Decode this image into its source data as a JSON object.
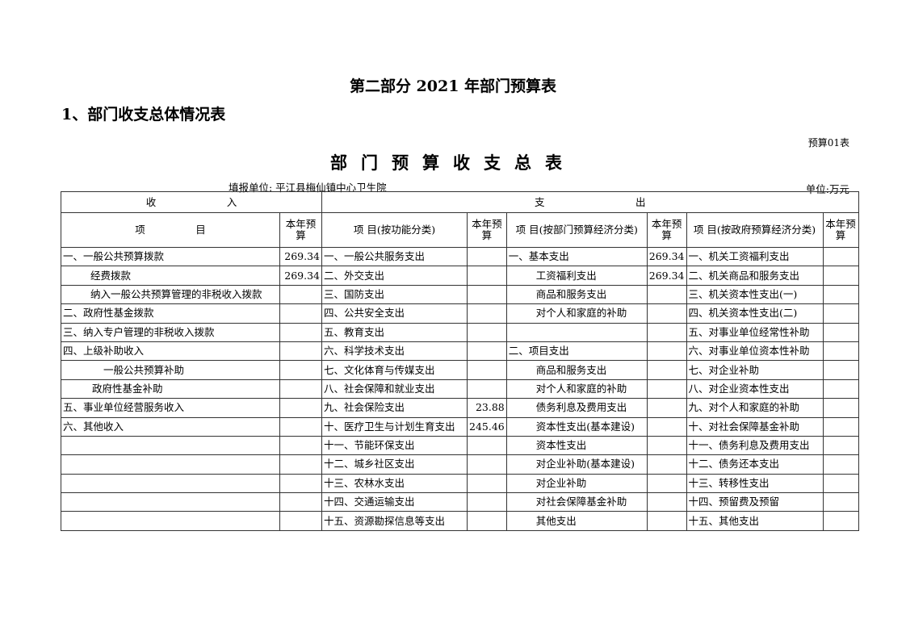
{
  "part_title": "第二部分 2021 年部门预算表",
  "section_title": "1、部门收支总体情况表",
  "table_code": "预算01表",
  "table_title": "部门预算收支总表",
  "filler": "填报单位: 平江县梅仙镇中心卫生院",
  "unit": "单位:万元",
  "headers": {
    "income": "收　　　　　　　入",
    "expense": "支　　　　　　　　　出",
    "col_item": "项　　　　　目",
    "col_budget": "本年预算",
    "col_func": "项 目(按功能分类)",
    "col_dept_econ": "项 目(按部门预算经济分类)",
    "col_gov_econ": "项 目(按政府预算经济分类)"
  },
  "rows": [
    {
      "in_item": "一、一般公共预算拨款",
      "in_val": "269.34",
      "func": "一、一般公共服务支出",
      "func_val": "",
      "dept": "一、基本支出",
      "dept_val": "269.34",
      "gov": "一、机关工资福利支出",
      "gov_val": ""
    },
    {
      "in_item": "经费拨款",
      "in_val": "269.34",
      "func": "二、外交支出",
      "func_val": "",
      "dept": "工资福利支出",
      "dept_val": "269.34",
      "gov": "二、机关商品和服务支出",
      "gov_val": ""
    },
    {
      "in_item": "纳入一般公共预算管理的非税收入拨款",
      "in_val": "",
      "func": "三、国防支出",
      "func_val": "",
      "dept": "商品和服务支出",
      "dept_val": "",
      "gov": "三、机关资本性支出(一)",
      "gov_val": ""
    },
    {
      "in_item": "二、政府性基金拨款",
      "in_val": "",
      "func": "四、公共安全支出",
      "func_val": "",
      "dept": "对个人和家庭的补助",
      "dept_val": "",
      "gov": "四、机关资本性支出(二)",
      "gov_val": ""
    },
    {
      "in_item": "三、纳入专户管理的非税收入拨款",
      "in_val": "",
      "func": "五、教育支出",
      "func_val": "",
      "dept": "",
      "dept_val": "",
      "gov": "五、对事业单位经常性补助",
      "gov_val": ""
    },
    {
      "in_item": "四、上级补助收入",
      "in_val": "",
      "func": "六、科学技术支出",
      "func_val": "",
      "dept": "二、项目支出",
      "dept_val": "",
      "gov": "六、对事业单位资本性补助",
      "gov_val": ""
    },
    {
      "in_item": "一般公共预算补助",
      "in_val": "",
      "func": "七、文化体育与传媒支出",
      "func_val": "",
      "dept": "商品和服务支出",
      "dept_val": "",
      "gov": "七、对企业补助",
      "gov_val": ""
    },
    {
      "in_item": "政府性基金补助",
      "in_val": "",
      "func": "八、社会保障和就业支出",
      "func_val": "",
      "dept": "对个人和家庭的补助",
      "dept_val": "",
      "gov": "八、对企业资本性支出",
      "gov_val": ""
    },
    {
      "in_item": "五、事业单位经营服务收入",
      "in_val": "",
      "func": "九、社会保险支出",
      "func_val": "23.88",
      "dept": "债务利息及费用支出",
      "dept_val": "",
      "gov": "九、对个人和家庭的补助",
      "gov_val": ""
    },
    {
      "in_item": "六、其他收入",
      "in_val": "",
      "func": "十、医疗卫生与计划生育支出",
      "func_val": "245.46",
      "dept": "资本性支出(基本建设)",
      "dept_val": "",
      "gov": "十、对社会保障基金补助",
      "gov_val": ""
    },
    {
      "in_item": "",
      "in_val": "",
      "func": "十一、节能环保支出",
      "func_val": "",
      "dept": "资本性支出",
      "dept_val": "",
      "gov": "十一、债务利息及费用支出",
      "gov_val": ""
    },
    {
      "in_item": "",
      "in_val": "",
      "func": "十二、城乡社区支出",
      "func_val": "",
      "dept": "对企业补助(基本建设)",
      "dept_val": "",
      "gov": "十二、债务还本支出",
      "gov_val": ""
    },
    {
      "in_item": "",
      "in_val": "",
      "func": "十三、农林水支出",
      "func_val": "",
      "dept": "对企业补助",
      "dept_val": "",
      "gov": "十三、转移性支出",
      "gov_val": ""
    },
    {
      "in_item": "",
      "in_val": "",
      "func": "十四、交通运输支出",
      "func_val": "",
      "dept": "对社会保障基金补助",
      "dept_val": "",
      "gov": "十四、预留费及预留",
      "gov_val": ""
    },
    {
      "in_item": "",
      "in_val": "",
      "func": "十五、资源勘探信息等支出",
      "func_val": "",
      "dept": "其他支出",
      "dept_val": "",
      "gov": "十五、其他支出",
      "gov_val": ""
    }
  ]
}
